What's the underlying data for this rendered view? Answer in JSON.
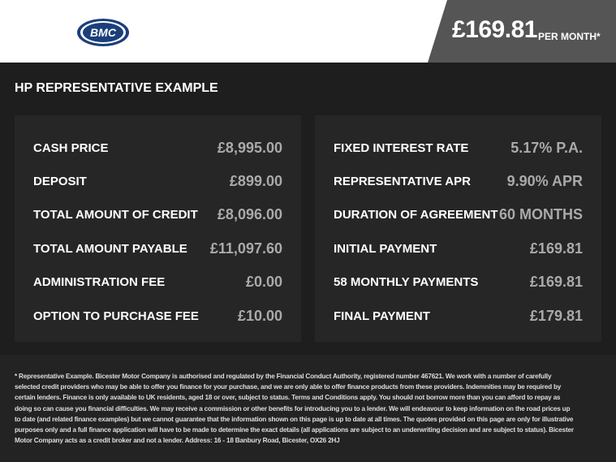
{
  "header": {
    "logo_text": "BMC",
    "price": "£169.81",
    "price_suffix": "PER MONTH*"
  },
  "title": "HP REPRESENTATIVE EXAMPLE",
  "left_panel": [
    {
      "label": "CASH PRICE",
      "value": "£8,995.00"
    },
    {
      "label": "DEPOSIT",
      "value": "£899.00"
    },
    {
      "label": "TOTAL AMOUNT OF CREDIT",
      "value": "£8,096.00"
    },
    {
      "label": "TOTAL AMOUNT PAYABLE",
      "value": "£11,097.60"
    },
    {
      "label": "ADMINISTRATION FEE",
      "value": "£0.00"
    },
    {
      "label": "OPTION TO PURCHASE FEE",
      "value": "£10.00"
    }
  ],
  "right_panel": [
    {
      "label": "FIXED INTEREST RATE",
      "value": "5.17% P.A."
    },
    {
      "label": "REPRESENTATIVE APR",
      "value": "9.90% APR"
    },
    {
      "label": "DURATION OF AGREEMENT",
      "value": "60 MONTHS"
    },
    {
      "label": "INITIAL PAYMENT",
      "value": "£169.81"
    },
    {
      "label": "58 MONTHLY PAYMENTS",
      "value": "£169.81"
    },
    {
      "label": "FINAL PAYMENT",
      "value": "£179.81"
    }
  ],
  "footer": {
    "disclaimer": "* Representative Example. Bicester Motor Company is authorised and regulated by the Financial Conduct Authority, registered number 467621. We work with a number of carefully selected credit providers who may be able to offer you finance for your purchase, and we are only able to offer finance products from these providers. Indemnities may be required by certain lenders. Finance is only available to UK residents, aged 18 or over, subject to status. Terms and Conditions apply. You should not borrow more than you can afford to repay as doing so can cause you financial difficulties. We may receive a commission or other benefits for introducing you to a lender. We will endeavour to keep information on the road prices up to date (and related finance examples) but we cannot guarantee that the information shown on this page is up to date at all times. The quotes provided on this page are only for illustrative purposes only and a full finance application will have to be made to determine the exact details (all applications are subject to an underwriting decision and are subject to status). Bicester Motor Company acts as a credit broker and not a lender. Address: 16 - 18 Banbury Road, Bicester, OX26 2HJ"
  },
  "colors": {
    "price_box": "#555555",
    "panel": "#262626",
    "background": "#1e1e1e",
    "value_text": "#aaaaaa",
    "logo_blue": "#1b3f7a"
  }
}
